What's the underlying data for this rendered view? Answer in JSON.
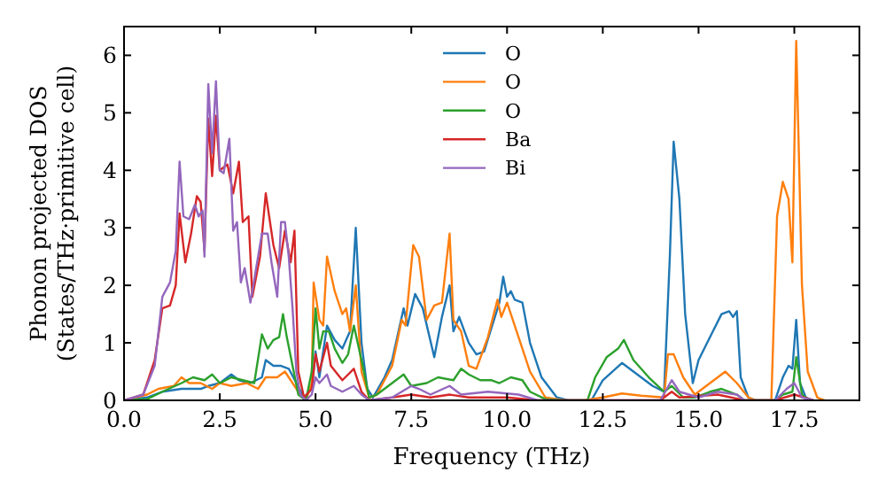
{
  "chart_data": {
    "type": "line",
    "xlabel": "Frequency (THz)",
    "ylabel": "Phonon projected DOS\n(States/THz·primitive cell)",
    "xlim": [
      0,
      19.2
    ],
    "ylim": [
      0,
      6.5
    ],
    "xticks": [
      {
        "value": 0,
        "label": "0.0"
      },
      {
        "value": 2.5,
        "label": "2.5"
      },
      {
        "value": 5,
        "label": "5.0"
      },
      {
        "value": 7.5,
        "label": "7.5"
      },
      {
        "value": 10,
        "label": "10.0"
      },
      {
        "value": 12.5,
        "label": "12.5"
      },
      {
        "value": 15,
        "label": "15.0"
      },
      {
        "value": 17.5,
        "label": "17.5"
      }
    ],
    "yticks": [
      0,
      1,
      2,
      3,
      4,
      5,
      6
    ],
    "grid": false,
    "legend": "top",
    "marker": "none",
    "line_style": "solid",
    "series": [
      {
        "name": "O",
        "color": "#1f77b4",
        "x": [
          0,
          0.6,
          1.0,
          1.5,
          2.0,
          2.2,
          2.5,
          2.8,
          3.0,
          3.3,
          3.6,
          3.7,
          3.9,
          4.1,
          4.3,
          4.5,
          4.7,
          4.9,
          5.0,
          5.1,
          5.3,
          5.5,
          5.7,
          5.9,
          6.05,
          6.2,
          6.35,
          6.5,
          6.8,
          7.0,
          7.3,
          7.4,
          7.6,
          7.8,
          8.1,
          8.3,
          8.5,
          8.6,
          8.75,
          9.0,
          9.2,
          9.4,
          9.8,
          9.9,
          10.0,
          10.1,
          10.2,
          10.4,
          10.6,
          10.9,
          11.3,
          11.6,
          12.2,
          12.5,
          13.0,
          13.3,
          13.8,
          14.1,
          14.25,
          14.35,
          14.5,
          14.65,
          14.85,
          15.0,
          15.3,
          15.6,
          15.8,
          15.9,
          16.0,
          16.1,
          16.3,
          16.5,
          17.0,
          17.2,
          17.35,
          17.45,
          17.55,
          17.65,
          17.8,
          18.0
        ],
        "values": [
          0,
          0.05,
          0.15,
          0.2,
          0.2,
          0.25,
          0.3,
          0.45,
          0.35,
          0.3,
          0.4,
          0.7,
          0.6,
          0.6,
          0.55,
          0.3,
          0.05,
          0.2,
          0.85,
          0.4,
          1.3,
          1.05,
          0.9,
          1.2,
          3.0,
          1.0,
          0.2,
          0.05,
          0.4,
          0.7,
          1.6,
          1.3,
          1.85,
          1.6,
          0.75,
          1.45,
          2.0,
          1.2,
          1.45,
          1.0,
          0.8,
          0.85,
          1.7,
          2.15,
          1.8,
          1.9,
          1.75,
          1.7,
          1.0,
          0.4,
          0.05,
          0,
          0,
          0.35,
          0.65,
          0.5,
          0.25,
          0.15,
          2.5,
          4.5,
          3.5,
          1.5,
          0.3,
          0.7,
          1.1,
          1.5,
          1.55,
          1.45,
          1.55,
          0.4,
          0.05,
          0,
          0,
          0.4,
          0.6,
          0.55,
          1.4,
          0.3,
          0.05,
          0
        ]
      },
      {
        "name": "O",
        "color": "#ff7f0e",
        "x": [
          0,
          0.6,
          0.9,
          1.3,
          1.5,
          1.7,
          2.0,
          2.3,
          2.5,
          2.8,
          3.2,
          3.5,
          3.7,
          4.0,
          4.2,
          4.4,
          4.6,
          4.75,
          4.9,
          4.95,
          5.1,
          5.2,
          5.3,
          5.5,
          5.7,
          5.8,
          5.9,
          6.05,
          6.2,
          6.4,
          6.6,
          7.0,
          7.25,
          7.35,
          7.55,
          7.7,
          7.9,
          8.1,
          8.3,
          8.5,
          8.6,
          8.8,
          9.0,
          9.2,
          9.5,
          9.75,
          9.85,
          10.0,
          10.1,
          10.3,
          10.6,
          11.0,
          11.5,
          12.0,
          12.5,
          13.0,
          13.5,
          14.1,
          14.2,
          14.35,
          14.6,
          14.9,
          15.3,
          15.7,
          16.0,
          16.3,
          16.5,
          16.9,
          17.05,
          17.2,
          17.35,
          17.45,
          17.55,
          17.7,
          17.85,
          18.1,
          18.3
        ],
        "values": [
          0,
          0.1,
          0.2,
          0.25,
          0.4,
          0.3,
          0.3,
          0.2,
          0.3,
          0.25,
          0.3,
          0.2,
          0.4,
          0.4,
          0.5,
          0.3,
          0.1,
          0,
          0.3,
          2.05,
          1.4,
          1.3,
          2.5,
          1.9,
          1.5,
          1.6,
          1.2,
          2.0,
          0.5,
          0.05,
          0.1,
          0.6,
          1.4,
          1.3,
          2.7,
          2.5,
          1.4,
          1.65,
          1.7,
          2.9,
          1.4,
          1.2,
          0.6,
          0.55,
          1.1,
          1.75,
          1.45,
          1.7,
          1.5,
          1.1,
          0.5,
          0.05,
          0,
          0,
          0.05,
          0.12,
          0.08,
          0.05,
          0.8,
          0.8,
          0.4,
          0.1,
          0.3,
          0.5,
          0.3,
          0.05,
          0,
          0,
          3.2,
          3.8,
          3.5,
          2.4,
          6.25,
          2.0,
          0.5,
          0.05,
          0
        ]
      },
      {
        "name": "O",
        "color": "#2ca02c",
        "x": [
          0,
          0.6,
          1.0,
          1.5,
          1.8,
          2.1,
          2.3,
          2.5,
          2.8,
          3.1,
          3.4,
          3.6,
          3.75,
          3.9,
          4.05,
          4.15,
          4.25,
          4.4,
          4.55,
          4.75,
          4.9,
          5.0,
          5.1,
          5.2,
          5.35,
          5.5,
          5.7,
          5.85,
          6.0,
          6.2,
          6.4,
          6.6,
          7.0,
          7.3,
          7.5,
          7.9,
          8.2,
          8.6,
          8.8,
          9.0,
          9.3,
          9.6,
          9.8,
          10.1,
          10.4,
          10.6,
          11.0,
          11.5,
          12.1,
          12.3,
          12.6,
          12.9,
          13.05,
          13.3,
          13.7,
          14.1,
          14.3,
          14.6,
          14.9,
          15.3,
          15.6,
          16.0,
          16.2,
          17.0,
          17.2,
          17.45,
          17.55,
          17.7,
          17.9
        ],
        "values": [
          0,
          0.02,
          0.15,
          0.3,
          0.4,
          0.35,
          0.45,
          0.3,
          0.4,
          0.35,
          0.3,
          1.15,
          0.9,
          1.05,
          1.1,
          1.5,
          1.1,
          0.6,
          0.1,
          0,
          0.5,
          1.6,
          0.9,
          1.2,
          1.2,
          0.9,
          0.65,
          0.8,
          1.3,
          0.7,
          0.05,
          0.1,
          0.3,
          0.45,
          0.25,
          0.3,
          0.4,
          0.35,
          0.55,
          0.45,
          0.35,
          0.35,
          0.3,
          0.4,
          0.35,
          0.15,
          0.02,
          0,
          0,
          0.4,
          0.75,
          0.9,
          1.05,
          0.7,
          0.4,
          0.15,
          0.25,
          0.05,
          0.05,
          0.15,
          0.2,
          0.1,
          0,
          0,
          0.1,
          0.15,
          0.75,
          0.1,
          0
        ]
      },
      {
        "name": "Ba",
        "color": "#d62728",
        "x": [
          0,
          0.5,
          0.8,
          1.0,
          1.2,
          1.35,
          1.45,
          1.6,
          1.75,
          1.9,
          2.0,
          2.1,
          2.2,
          2.3,
          2.4,
          2.5,
          2.7,
          2.85,
          3.0,
          3.1,
          3.25,
          3.35,
          3.55,
          3.7,
          3.9,
          4.05,
          4.2,
          4.35,
          4.45,
          4.55,
          4.7,
          4.9,
          5.0,
          5.1,
          5.3,
          5.4,
          5.7,
          6.0,
          6.2,
          6.4,
          7.0,
          7.5,
          8.0,
          8.5,
          9.0,
          10.0,
          10.8,
          14.0,
          14.3,
          14.5,
          15.5,
          16.2,
          17.0,
          17.5,
          18.0
        ],
        "values": [
          0,
          0.1,
          0.7,
          1.6,
          1.65,
          2.0,
          3.25,
          2.4,
          2.9,
          3.55,
          3.45,
          2.6,
          4.9,
          3.9,
          4.95,
          4.0,
          4.1,
          3.6,
          4.15,
          3.1,
          3.2,
          1.8,
          2.5,
          3.6,
          2.7,
          2.3,
          2.95,
          2.4,
          2.95,
          0.5,
          0.05,
          0.2,
          0.8,
          0.5,
          1.0,
          0.6,
          0.35,
          0.55,
          0.15,
          0,
          0.05,
          0.1,
          0.05,
          0.1,
          0.05,
          0.05,
          0,
          0,
          0.15,
          0.05,
          0.1,
          0,
          0,
          0.1,
          0
        ]
      },
      {
        "name": "Bi",
        "color": "#9467bd",
        "x": [
          0,
          0.5,
          0.8,
          1.0,
          1.2,
          1.35,
          1.45,
          1.55,
          1.7,
          1.85,
          1.95,
          2.05,
          2.1,
          2.2,
          2.3,
          2.4,
          2.5,
          2.6,
          2.75,
          2.85,
          2.95,
          3.05,
          3.15,
          3.3,
          3.45,
          3.6,
          3.75,
          3.85,
          4.0,
          4.1,
          4.2,
          4.3,
          4.4,
          4.5,
          4.6,
          4.75,
          4.9,
          5.0,
          5.1,
          5.3,
          5.4,
          5.7,
          6.0,
          6.2,
          6.4,
          7.0,
          7.5,
          7.7,
          8.0,
          8.5,
          8.8,
          9.5,
          10.3,
          10.8,
          14.0,
          14.3,
          14.5,
          15.0,
          15.5,
          16.0,
          16.2,
          17.0,
          17.3,
          17.5,
          17.7,
          18.0
        ],
        "values": [
          0,
          0.1,
          0.6,
          1.8,
          2.05,
          2.6,
          4.15,
          3.2,
          3.15,
          3.4,
          3.2,
          3.3,
          2.5,
          5.5,
          4.3,
          5.55,
          4.0,
          3.95,
          4.55,
          2.95,
          3.1,
          2.05,
          2.3,
          1.7,
          2.3,
          2.9,
          2.9,
          2.4,
          1.8,
          3.1,
          3.1,
          2.5,
          1.6,
          0.5,
          0.1,
          0,
          0.1,
          0.4,
          0.3,
          0.45,
          0.25,
          0.15,
          0.25,
          0.1,
          0,
          0.05,
          0.25,
          0.2,
          0.1,
          0.25,
          0.1,
          0.15,
          0.1,
          0,
          0,
          0.35,
          0.15,
          0.05,
          0.15,
          0.1,
          0,
          0,
          0.2,
          0.3,
          0.05,
          0
        ]
      }
    ]
  }
}
